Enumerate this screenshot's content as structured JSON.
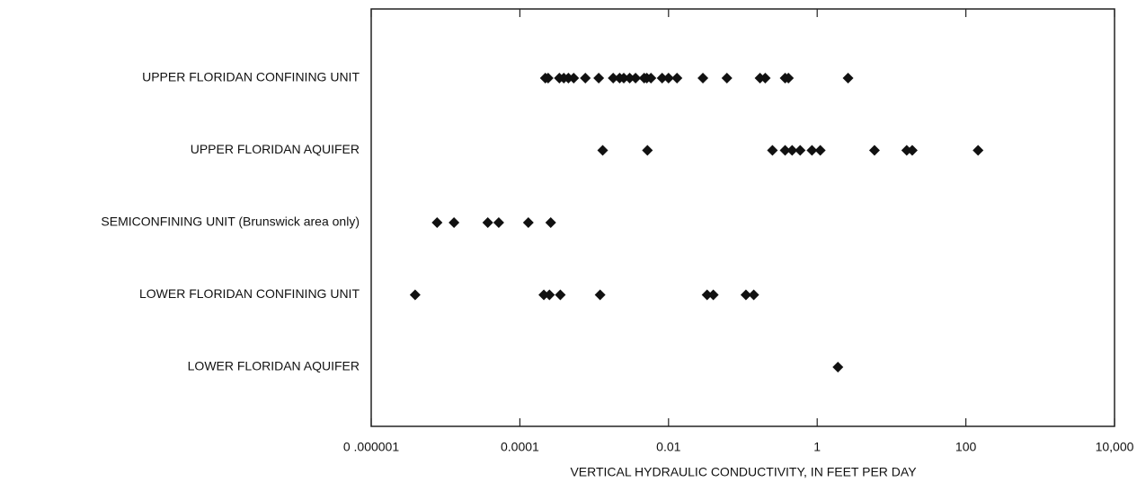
{
  "chart_data": {
    "type": "strip",
    "x_label": "VERTICAL HYDRAULIC CONDUCTIVITY, IN FEET PER DAY",
    "categories": [
      "UPPER FLORIDAN CONFINING UNIT",
      "UPPER FLORIDAN AQUIFER",
      "SEMICONFINING UNIT (Brunswick area only)",
      "LOWER FLORIDAN CONFINING UNIT",
      "LOWER FLORIDAN AQUIFER"
    ],
    "values": [
      [
        0.00022,
        0.00024,
        0.00034,
        0.00039,
        0.00045,
        0.00053,
        0.00076,
        0.00115,
        0.0018,
        0.0022,
        0.0025,
        0.003,
        0.0036,
        0.0047,
        0.0051,
        0.0058,
        0.0082,
        0.01,
        0.013,
        0.029,
        0.061,
        0.17,
        0.2,
        0.37,
        0.41,
        2.6
      ],
      [
        0.0013,
        0.0052,
        0.25,
        0.37,
        0.46,
        0.59,
        0.85,
        1.1,
        5.9,
        16,
        19,
        146
      ],
      [
        7.7e-06,
        1.3e-05,
        3.7e-05,
        5.2e-05,
        0.00013,
        0.00026
      ],
      [
        3.9e-06,
        0.00021,
        0.00025,
        0.00035,
        0.0012,
        0.033,
        0.04,
        0.11,
        0.14
      ],
      [
        1.9
      ]
    ],
    "color": "#111111",
    "x_log": true,
    "xlim": [
      1e-06,
      10000
    ],
    "xticks": [
      {
        "value": 1e-06,
        "label": "0 .000001"
      },
      0.0001,
      0.01,
      1,
      100,
      {
        "value": 10000,
        "label": "10,000"
      }
    ]
  }
}
